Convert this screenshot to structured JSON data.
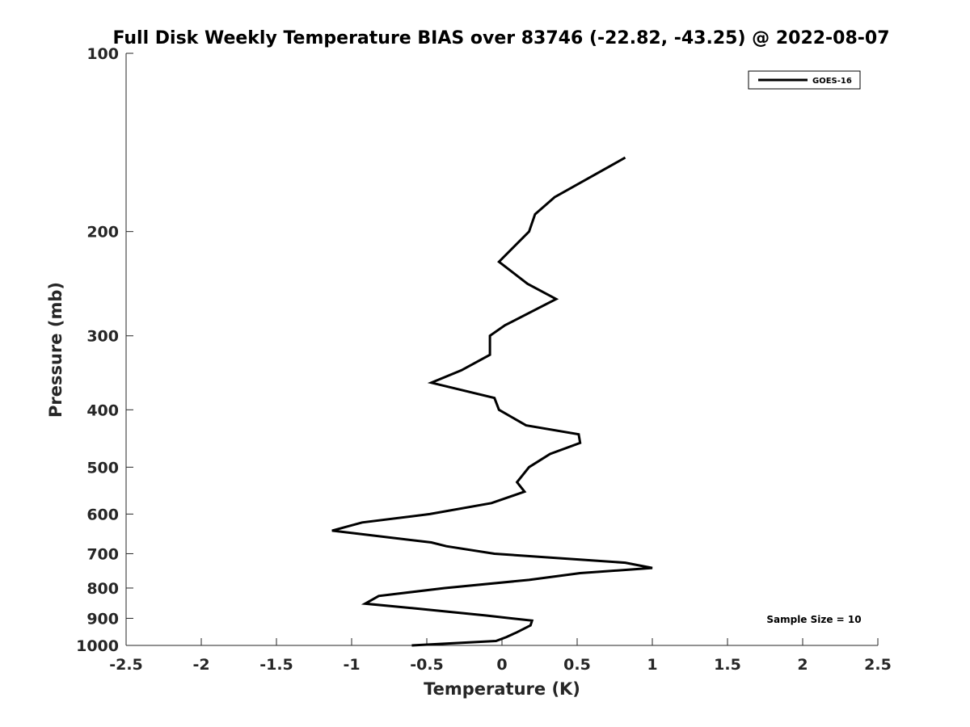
{
  "chart_data": {
    "type": "line",
    "title": "Full Disk Weekly Temperature BIAS over 83746 (-22.82, -43.25) @ 2022-08-07",
    "xlabel": "Temperature (K)",
    "ylabel": "Pressure (mb)",
    "xlim": [
      -2.5,
      2.5
    ],
    "ylim": [
      100,
      1000
    ],
    "y_scale": "log",
    "y_reversed": true,
    "x_ticks": [
      "-2.5",
      "-2",
      "-1.5",
      "-1",
      "-0.5",
      "0",
      "0.5",
      "1",
      "1.5",
      "2",
      "2.5"
    ],
    "y_ticks": [
      "100",
      "200",
      "300",
      "400",
      "500",
      "600",
      "700",
      "800",
      "900",
      "1000"
    ],
    "legend_position": "top-right",
    "annotation": "Sample Size = 10",
    "series": [
      {
        "name": "GOES-16",
        "color": "#000000",
        "points": [
          {
            "t": 0.82,
            "p": 150
          },
          {
            "t": 0.35,
            "p": 175
          },
          {
            "t": 0.22,
            "p": 187
          },
          {
            "t": 0.18,
            "p": 200
          },
          {
            "t": -0.02,
            "p": 225
          },
          {
            "t": 0.17,
            "p": 245
          },
          {
            "t": 0.36,
            "p": 260
          },
          {
            "t": 0.02,
            "p": 288
          },
          {
            "t": -0.08,
            "p": 300
          },
          {
            "t": -0.08,
            "p": 323
          },
          {
            "t": -0.27,
            "p": 343
          },
          {
            "t": -0.47,
            "p": 360
          },
          {
            "t": -0.05,
            "p": 382
          },
          {
            "t": -0.02,
            "p": 400
          },
          {
            "t": 0.16,
            "p": 425
          },
          {
            "t": 0.51,
            "p": 440
          },
          {
            "t": 0.52,
            "p": 455
          },
          {
            "t": 0.32,
            "p": 475
          },
          {
            "t": 0.18,
            "p": 500
          },
          {
            "t": 0.1,
            "p": 530
          },
          {
            "t": 0.15,
            "p": 550
          },
          {
            "t": -0.07,
            "p": 575
          },
          {
            "t": -0.48,
            "p": 600
          },
          {
            "t": -0.93,
            "p": 620
          },
          {
            "t": -1.13,
            "p": 640
          },
          {
            "t": -0.47,
            "p": 670
          },
          {
            "t": -0.37,
            "p": 680
          },
          {
            "t": -0.05,
            "p": 700
          },
          {
            "t": 0.82,
            "p": 725
          },
          {
            "t": 1.0,
            "p": 740
          },
          {
            "t": 0.52,
            "p": 755
          },
          {
            "t": 0.18,
            "p": 775
          },
          {
            "t": -0.38,
            "p": 800
          },
          {
            "t": -0.82,
            "p": 825
          },
          {
            "t": -0.91,
            "p": 850
          },
          {
            "t": -0.6,
            "p": 865
          },
          {
            "t": -0.11,
            "p": 890
          },
          {
            "t": 0.2,
            "p": 908
          },
          {
            "t": 0.19,
            "p": 925
          },
          {
            "t": 0.1,
            "p": 950
          },
          {
            "t": 0.03,
            "p": 968
          },
          {
            "t": -0.04,
            "p": 983
          },
          {
            "t": -0.6,
            "p": 1000
          }
        ]
      }
    ]
  }
}
